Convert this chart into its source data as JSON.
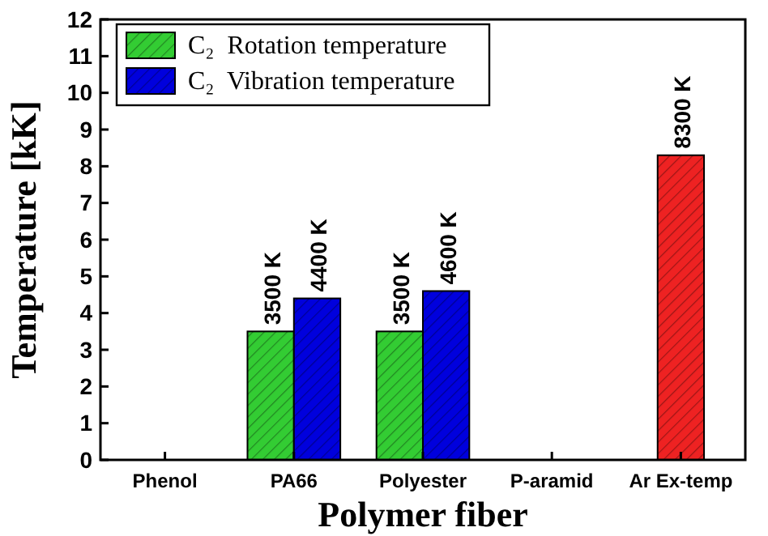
{
  "chart_data": {
    "type": "bar",
    "xlabel": "Polymer fiber",
    "ylabel": "Temperature [kK]",
    "categories": [
      "Phenol",
      "PA66",
      "Polyester",
      "P-aramid",
      "Ar Ex-temp"
    ],
    "series": [
      {
        "name": "C₂  Rotation temperature",
        "color": "#33cc33",
        "values": [
          null,
          3.5,
          3.5,
          null,
          null
        ],
        "value_labels": [
          null,
          "3500 K",
          "3500 K",
          null,
          null
        ]
      },
      {
        "name": "C₂  Vibration temperature",
        "color": "#0000dd",
        "values": [
          null,
          4.4,
          4.6,
          null,
          null
        ],
        "value_labels": [
          null,
          "4400 K",
          "4600 K",
          null,
          null
        ]
      },
      {
        "color": "#ee2222",
        "values": [
          null,
          null,
          null,
          null,
          8.3
        ],
        "value_labels": [
          null,
          null,
          null,
          null,
          "8300 K"
        ]
      }
    ],
    "ylim": [
      0,
      12
    ],
    "yticks": [
      0,
      1,
      2,
      3,
      4,
      5,
      6,
      7,
      8,
      9,
      10,
      11,
      12
    ],
    "legend": "top left",
    "grid": false
  }
}
